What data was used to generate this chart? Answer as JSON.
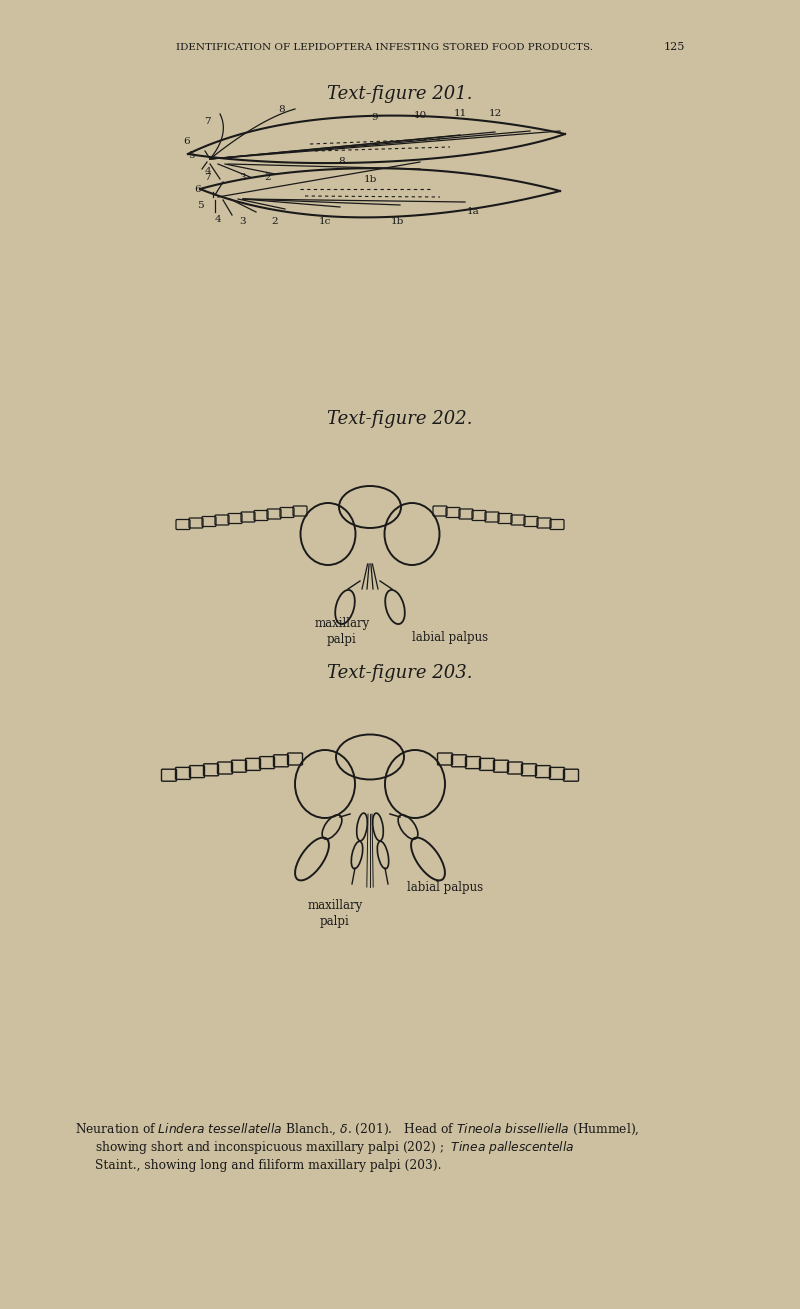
{
  "bg_color": "#cdc0a0",
  "line_color": "#1a1a1a",
  "text_color": "#1a1a1a",
  "header_text": "IDENTIFICATION OF LEPIDOPTERA INFESTING STORED FOOD PRODUCTS.",
  "page_number": "125",
  "fig201_title": "Text-figure 201.",
  "fig202_title": "Text-figure 202.",
  "fig203_title": "Text-figure 203."
}
